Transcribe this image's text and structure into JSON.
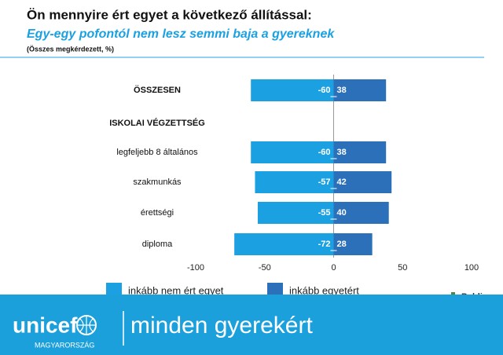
{
  "header": {
    "title": "Ön mennyire ért egyet a következő állítással:",
    "subtitle": "Egy-egy pofontól nem lesz semmi baja a gyereknek",
    "note": "(Összes megkérdezett, %)"
  },
  "chart_data": {
    "type": "bar",
    "orientation": "horizontal",
    "stacked": "diverging",
    "categories": [
      "ÖSSZESEN",
      "ISKOLAI VÉGZETTSÉG",
      "legfeljebb 8 általános",
      "szakmunkás",
      "érettségi",
      "diploma"
    ],
    "series": [
      {
        "name": "inkább nem ért egyet",
        "color": "#1ba1e2",
        "values": [
          -60,
          null,
          -60,
          -57,
          -55,
          -72
        ]
      },
      {
        "name": "inkább egyetért",
        "color": "#2b70b8",
        "values": [
          38,
          null,
          38,
          42,
          40,
          28
        ]
      }
    ],
    "xlim": [
      -100,
      100
    ],
    "xticks": [
      -100,
      -50,
      0,
      50,
      100
    ]
  },
  "logo": "Publicus",
  "footer": {
    "brand": "unicef",
    "slogan": "minden gyerekért",
    "country": "MAGYARORSZÁG"
  }
}
